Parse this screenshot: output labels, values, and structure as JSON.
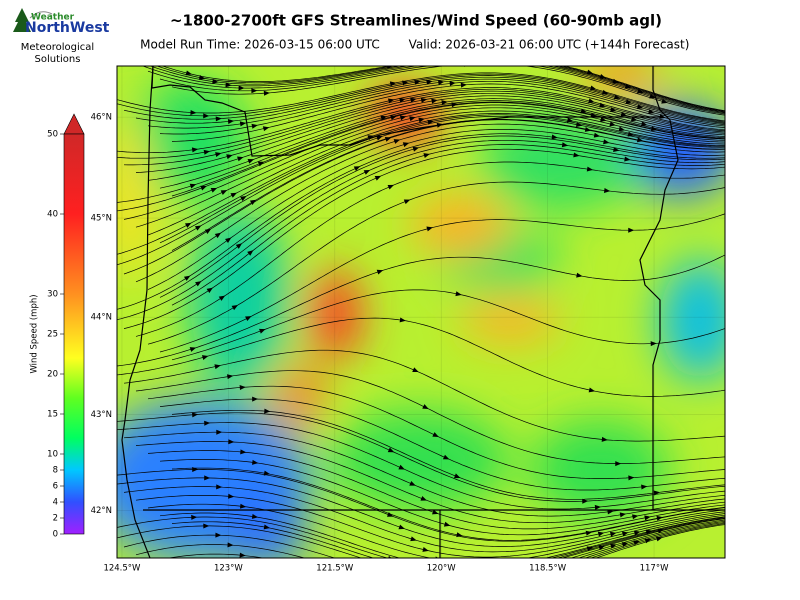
{
  "header": {
    "title": "~1800-2700ft GFS Streamlines/Wind Speed (60-90mb agl)",
    "model_run": "Model Run Time: 2026-03-15 06:00 UTC",
    "valid": "Valid: 2026-03-21 06:00 UTC  (+144h Forecast)"
  },
  "logo": {
    "line1": "Weather",
    "line2": "NorthWest",
    "tagline": "Meteorological Solutions"
  },
  "colorbar": {
    "label": "Wind Speed (mph)",
    "lim": [
      0,
      50
    ],
    "ticks": [
      0,
      2,
      4,
      6,
      8,
      10,
      15,
      20,
      25,
      30,
      40,
      50
    ]
  },
  "map": {
    "xlim": [
      -124.57,
      -116.0
    ],
    "ylim": [
      41.5,
      46.5
    ],
    "xticks": [
      {
        "value": -124.5,
        "label": "124.5°W"
      },
      {
        "value": -123,
        "label": "123°W"
      },
      {
        "value": -121.5,
        "label": "121.5°W"
      },
      {
        "value": -120,
        "label": "120°W"
      },
      {
        "value": -118.5,
        "label": "118.5°W"
      },
      {
        "value": -117,
        "label": "117°W"
      }
    ],
    "yticks": [
      {
        "value": 42,
        "label": "42°N"
      },
      {
        "value": 43,
        "label": "43°N"
      },
      {
        "value": 44,
        "label": "44°N"
      },
      {
        "value": 45,
        "label": "45°N"
      },
      {
        "value": 46,
        "label": "46°N"
      }
    ],
    "grid": true
  }
}
